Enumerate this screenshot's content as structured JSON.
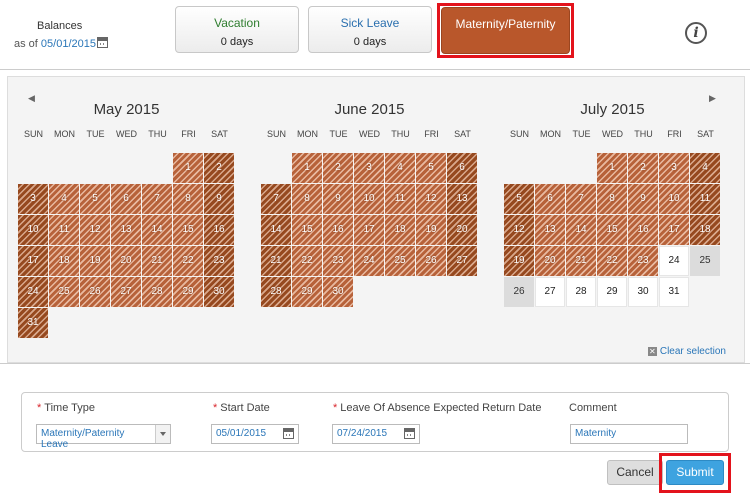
{
  "balances": {
    "title": "Balances",
    "as_of_label": "as of",
    "as_of_date": "05/01/2015"
  },
  "cards": [
    {
      "name": "Vacation",
      "value": "0 days"
    },
    {
      "name": "Sick Leave",
      "value": "0 days"
    },
    {
      "name": "Maternity/Paternity"
    }
  ],
  "info_icon": "i",
  "nav": {
    "prev": "◀",
    "next": "▶"
  },
  "dow": [
    "SUN",
    "MON",
    "TUE",
    "WED",
    "THU",
    "FRI",
    "SAT"
  ],
  "months": [
    {
      "title": "May 2015",
      "first_dow": 5,
      "days": 31,
      "selected_until": 31,
      "gray": []
    },
    {
      "title": "June 2015",
      "first_dow": 1,
      "days": 30,
      "selected_until": 30,
      "gray": []
    },
    {
      "title": "July 2015",
      "first_dow": 3,
      "days": 31,
      "selected_until": 23,
      "gray": [
        25,
        26
      ]
    }
  ],
  "clear_selection": "Clear selection",
  "form": {
    "time_type_label": "Time Type",
    "time_type_value": "Maternity/Paternity Leave",
    "start_date_label": "Start Date",
    "start_date_value": "05/01/2015",
    "return_label": "Leave Of Absence Expected Return Date",
    "return_value": "07/24/2015",
    "comment_label": "Comment",
    "comment_value": "Maternity",
    "required_marker": "*"
  },
  "buttons": {
    "cancel": "Cancel",
    "submit": "Submit"
  },
  "colors": {
    "selected_day": "#b7623a",
    "accent_blue": "#3ea3e0",
    "highlight_red": "#e3131c"
  }
}
